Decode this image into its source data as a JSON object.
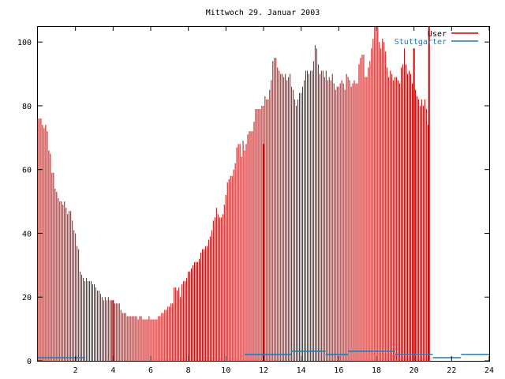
{
  "chart_data": {
    "type": "bar",
    "title": "Mittwoch 29. Januar 2003",
    "xlabel": "",
    "ylabel": "",
    "xlim": [
      0,
      24
    ],
    "ylim": [
      0,
      105
    ],
    "xticks": [
      2,
      4,
      6,
      8,
      10,
      12,
      14,
      16,
      18,
      20,
      22,
      24
    ],
    "yticks": [
      0,
      20,
      40,
      60,
      80,
      100
    ],
    "grid": false,
    "legend_position": "top-right",
    "step_hours": 0.0833,
    "series": [
      {
        "name": "User",
        "color": "#cc0000",
        "style": "impulses",
        "values": [
          76,
          76,
          76,
          74,
          73,
          74,
          72,
          66,
          65,
          59,
          59,
          54,
          53,
          51,
          50,
          50,
          49,
          50,
          48,
          46,
          47,
          47,
          44,
          41,
          40,
          36,
          35,
          28,
          27,
          26,
          25,
          26,
          25,
          25,
          25,
          24,
          24,
          23,
          22,
          22,
          21,
          20,
          19,
          20,
          19,
          20,
          19,
          19,
          19,
          18,
          18,
          18,
          18,
          16,
          15,
          15,
          15,
          14,
          14,
          14,
          14,
          14,
          14,
          14,
          13,
          14,
          14,
          13,
          13,
          13,
          13,
          14,
          13,
          13,
          13,
          13,
          13,
          14,
          14,
          15,
          15,
          16,
          16,
          17,
          17,
          18,
          18,
          23,
          23,
          22,
          23,
          20,
          24,
          25,
          25,
          26,
          28,
          28,
          29,
          30,
          31,
          31,
          31,
          32,
          34,
          35,
          35,
          36,
          36,
          38,
          39,
          41,
          44,
          45,
          48,
          46,
          45,
          45,
          46,
          49,
          52,
          56,
          57,
          58,
          58,
          60,
          62,
          67,
          68,
          68,
          64,
          69,
          66,
          68,
          71,
          72,
          72,
          72,
          75,
          79,
          79,
          79,
          79,
          80,
          80,
          83,
          82,
          82,
          85,
          88,
          94,
          95,
          95,
          92,
          91,
          90,
          90,
          89,
          90,
          88,
          89,
          90,
          86,
          85,
          82,
          80,
          82,
          84,
          84,
          86,
          88,
          91,
          91,
          90,
          91,
          91,
          94,
          99,
          98,
          93,
          90,
          91,
          91,
          89,
          91,
          88,
          89,
          88,
          90,
          87,
          85,
          86,
          86,
          87,
          88,
          87,
          85,
          90,
          89,
          88,
          86,
          87,
          88,
          87,
          87,
          93,
          95,
          96,
          96,
          89,
          89,
          92,
          94,
          98,
          101,
          108,
          108,
          106,
          100,
          98,
          101,
          100,
          97,
          92,
          89,
          91,
          90,
          88,
          89,
          89,
          88,
          87,
          92,
          93,
          98,
          93,
          90,
          91,
          90,
          87,
          86,
          85,
          83,
          82,
          80,
          82,
          80,
          82,
          79,
          74
        ],
        "spikes": [
          {
            "x": 4.0,
            "value": 19
          },
          {
            "x": 12.0,
            "value": 68
          },
          {
            "x": 20.0,
            "value": 98
          },
          {
            "x": 20.8,
            "value": 108
          }
        ]
      },
      {
        "name": "Stuttgarter",
        "color": "#1f78b4",
        "style": "impulses",
        "segments": [
          {
            "x_start": 0.0,
            "x_end": 2.5,
            "value": 1
          },
          {
            "x_start": 2.5,
            "x_end": 11.0,
            "value": 0
          },
          {
            "x_start": 11.0,
            "x_end": 13.5,
            "value": 2
          },
          {
            "x_start": 13.5,
            "x_end": 15.3,
            "value": 3
          },
          {
            "x_start": 15.3,
            "x_end": 16.5,
            "value": 2
          },
          {
            "x_start": 16.5,
            "x_end": 18.0,
            "value": 3
          },
          {
            "x_start": 18.0,
            "x_end": 19.0,
            "value": 3
          },
          {
            "x_start": 19.0,
            "x_end": 20.2,
            "value": 2
          },
          {
            "x_start": 20.2,
            "x_end": 21.0,
            "value": 2
          },
          {
            "x_start": 21.0,
            "x_end": 22.5,
            "value": 1
          },
          {
            "x_start": 22.5,
            "x_end": 24.0,
            "value": 2
          }
        ]
      }
    ]
  }
}
